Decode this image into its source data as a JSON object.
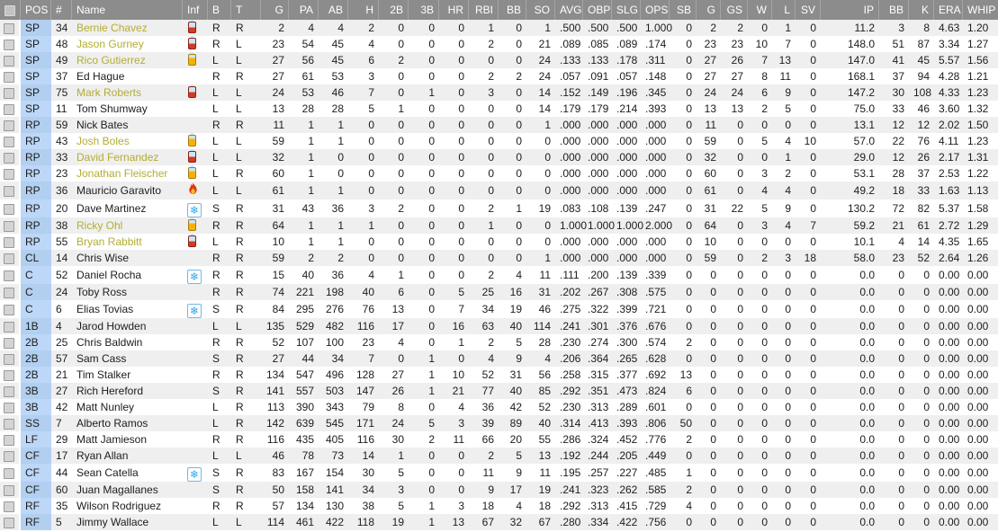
{
  "app": {
    "title": "Team Roster Statistics"
  },
  "colors": {
    "header_bg": "#8c8c8c",
    "row_odd": "#efefef",
    "row_even": "#ffffff",
    "pos_column_blue": "#b6d3f3",
    "tired_name_yellow": "#b3ad33",
    "battery_red": "#d43a25",
    "battery_orange": "#f7b200",
    "snowflake_blue": "#2fa8ee",
    "fire_orange": "#e2380e"
  },
  "icons": {
    "snowflake_glyph": "❄",
    "legend": {
      "battery-red": "pitcher-fatigue-high",
      "battery-orange": "pitcher-fatigue-medium",
      "fire": "hot-streak",
      "snowflake": "cold-streak"
    }
  },
  "table": {
    "columns": [
      "",
      "POS",
      "#",
      "Name",
      "Inf",
      "B",
      "T",
      "G",
      "PA",
      "AB",
      "H",
      "2B",
      "3B",
      "HR",
      "RBI",
      "BB",
      "SO",
      "AVG",
      "OBP",
      "SLG",
      "OPS",
      "SB",
      "G",
      "GS",
      "W",
      "L",
      "SV",
      "IP",
      "BB",
      "K",
      "ERA",
      "WHIP"
    ],
    "rows": [
      {
        "pos": "SP",
        "num": "34",
        "name": "Bernie Chavez",
        "tired": true,
        "icon": "battery-red",
        "b": "R",
        "t": "R",
        "stats": [
          "2",
          "4",
          "4",
          "2",
          "0",
          "0",
          "0",
          "1",
          "0",
          "1",
          ".500",
          ".500",
          ".500",
          "1.000",
          "0",
          "2",
          "2",
          "0",
          "1",
          "0",
          "11.2",
          "3",
          "8",
          "4.63",
          "1.20"
        ]
      },
      {
        "pos": "SP",
        "num": "48",
        "name": "Jason Gurney",
        "tired": true,
        "icon": "battery-red",
        "b": "R",
        "t": "L",
        "stats": [
          "23",
          "54",
          "45",
          "4",
          "0",
          "0",
          "0",
          "2",
          "0",
          "21",
          ".089",
          ".085",
          ".089",
          ".174",
          "0",
          "23",
          "23",
          "10",
          "7",
          "0",
          "148.0",
          "51",
          "87",
          "3.34",
          "1.27"
        ]
      },
      {
        "pos": "SP",
        "num": "49",
        "name": "Rico Gutierrez",
        "tired": true,
        "icon": "battery-orange",
        "b": "L",
        "t": "L",
        "stats": [
          "27",
          "56",
          "45",
          "6",
          "2",
          "0",
          "0",
          "0",
          "0",
          "24",
          ".133",
          ".133",
          ".178",
          ".311",
          "0",
          "27",
          "26",
          "7",
          "13",
          "0",
          "147.0",
          "41",
          "45",
          "5.57",
          "1.56"
        ]
      },
      {
        "pos": "SP",
        "num": "37",
        "name": "Ed Hague",
        "tired": false,
        "icon": "",
        "b": "R",
        "t": "R",
        "stats": [
          "27",
          "61",
          "53",
          "3",
          "0",
          "0",
          "0",
          "2",
          "2",
          "24",
          ".057",
          ".091",
          ".057",
          ".148",
          "0",
          "27",
          "27",
          "8",
          "11",
          "0",
          "168.1",
          "37",
          "94",
          "4.28",
          "1.21"
        ]
      },
      {
        "pos": "SP",
        "num": "75",
        "name": "Mark Roberts",
        "tired": true,
        "icon": "battery-red",
        "b": "L",
        "t": "L",
        "stats": [
          "24",
          "53",
          "46",
          "7",
          "0",
          "1",
          "0",
          "3",
          "0",
          "14",
          ".152",
          ".149",
          ".196",
          ".345",
          "0",
          "24",
          "24",
          "6",
          "9",
          "0",
          "147.2",
          "30",
          "108",
          "4.33",
          "1.23"
        ]
      },
      {
        "pos": "SP",
        "num": "11",
        "name": "Tom Shumway",
        "tired": false,
        "icon": "",
        "b": "L",
        "t": "L",
        "stats": [
          "13",
          "28",
          "28",
          "5",
          "1",
          "0",
          "0",
          "0",
          "0",
          "14",
          ".179",
          ".179",
          ".214",
          ".393",
          "0",
          "13",
          "13",
          "2",
          "5",
          "0",
          "75.0",
          "33",
          "46",
          "3.60",
          "1.32"
        ]
      },
      {
        "pos": "RP",
        "num": "59",
        "name": "Nick Bates",
        "tired": false,
        "icon": "",
        "b": "R",
        "t": "R",
        "stats": [
          "11",
          "1",
          "1",
          "0",
          "0",
          "0",
          "0",
          "0",
          "0",
          "1",
          ".000",
          ".000",
          ".000",
          ".000",
          "0",
          "11",
          "0",
          "0",
          "0",
          "0",
          "13.1",
          "12",
          "12",
          "2.02",
          "1.50"
        ]
      },
      {
        "pos": "RP",
        "num": "43",
        "name": "Josh Boles",
        "tired": true,
        "icon": "battery-orange",
        "b": "L",
        "t": "L",
        "stats": [
          "59",
          "1",
          "1",
          "0",
          "0",
          "0",
          "0",
          "0",
          "0",
          "0",
          ".000",
          ".000",
          ".000",
          ".000",
          "0",
          "59",
          "0",
          "5",
          "4",
          "10",
          "57.0",
          "22",
          "76",
          "4.11",
          "1.23"
        ]
      },
      {
        "pos": "RP",
        "num": "33",
        "name": "David Fernandez",
        "tired": true,
        "icon": "battery-red",
        "b": "L",
        "t": "L",
        "stats": [
          "32",
          "1",
          "0",
          "0",
          "0",
          "0",
          "0",
          "0",
          "0",
          "0",
          ".000",
          ".000",
          ".000",
          ".000",
          "0",
          "32",
          "0",
          "0",
          "1",
          "0",
          "29.0",
          "12",
          "26",
          "2.17",
          "1.31"
        ]
      },
      {
        "pos": "RP",
        "num": "23",
        "name": "Jonathan Fleischer",
        "tired": true,
        "icon": "battery-orange",
        "b": "L",
        "t": "R",
        "stats": [
          "60",
          "1",
          "0",
          "0",
          "0",
          "0",
          "0",
          "0",
          "0",
          "0",
          ".000",
          ".000",
          ".000",
          ".000",
          "0",
          "60",
          "0",
          "3",
          "2",
          "0",
          "53.1",
          "28",
          "37",
          "2.53",
          "1.22"
        ]
      },
      {
        "pos": "RP",
        "num": "36",
        "name": "Mauricio Garavito",
        "tired": false,
        "icon": "fire",
        "b": "L",
        "t": "L",
        "stats": [
          "61",
          "1",
          "1",
          "0",
          "0",
          "0",
          "0",
          "0",
          "0",
          "0",
          ".000",
          ".000",
          ".000",
          ".000",
          "0",
          "61",
          "0",
          "4",
          "4",
          "0",
          "49.2",
          "18",
          "33",
          "1.63",
          "1.13"
        ]
      },
      {
        "pos": "RP",
        "num": "20",
        "name": "Dave Martinez",
        "tired": false,
        "icon": "snowflake",
        "b": "S",
        "t": "R",
        "stats": [
          "31",
          "43",
          "36",
          "3",
          "2",
          "0",
          "0",
          "2",
          "1",
          "19",
          ".083",
          ".108",
          ".139",
          ".247",
          "0",
          "31",
          "22",
          "5",
          "9",
          "0",
          "130.2",
          "72",
          "82",
          "5.37",
          "1.58"
        ]
      },
      {
        "pos": "RP",
        "num": "38",
        "name": "Ricky Ohl",
        "tired": true,
        "icon": "battery-orange",
        "b": "R",
        "t": "R",
        "stats": [
          "64",
          "1",
          "1",
          "1",
          "0",
          "0",
          "0",
          "1",
          "0",
          "0",
          "1.000",
          "1.000",
          "1.000",
          "2.000",
          "0",
          "64",
          "0",
          "3",
          "4",
          "7",
          "59.2",
          "21",
          "61",
          "2.72",
          "1.29"
        ]
      },
      {
        "pos": "RP",
        "num": "55",
        "name": "Bryan Rabbitt",
        "tired": true,
        "icon": "battery-red",
        "b": "L",
        "t": "R",
        "stats": [
          "10",
          "1",
          "1",
          "0",
          "0",
          "0",
          "0",
          "0",
          "0",
          "0",
          ".000",
          ".000",
          ".000",
          ".000",
          "0",
          "10",
          "0",
          "0",
          "0",
          "0",
          "10.1",
          "4",
          "14",
          "4.35",
          "1.65"
        ]
      },
      {
        "pos": "CL",
        "num": "14",
        "name": "Chris Wise",
        "tired": false,
        "icon": "",
        "b": "R",
        "t": "R",
        "stats": [
          "59",
          "2",
          "2",
          "0",
          "0",
          "0",
          "0",
          "0",
          "0",
          "1",
          ".000",
          ".000",
          ".000",
          ".000",
          "0",
          "59",
          "0",
          "2",
          "3",
          "18",
          "58.0",
          "23",
          "52",
          "2.64",
          "1.26"
        ]
      },
      {
        "pos": "C",
        "num": "52",
        "name": "Daniel Rocha",
        "tired": false,
        "icon": "snowflake",
        "b": "R",
        "t": "R",
        "stats": [
          "15",
          "40",
          "36",
          "4",
          "1",
          "0",
          "0",
          "2",
          "4",
          "11",
          ".111",
          ".200",
          ".139",
          ".339",
          "0",
          "0",
          "0",
          "0",
          "0",
          "0",
          "0.0",
          "0",
          "0",
          "0.00",
          "0.00"
        ]
      },
      {
        "pos": "C",
        "num": "24",
        "name": "Toby Ross",
        "tired": false,
        "icon": "",
        "b": "R",
        "t": "R",
        "stats": [
          "74",
          "221",
          "198",
          "40",
          "6",
          "0",
          "5",
          "25",
          "16",
          "31",
          ".202",
          ".267",
          ".308",
          ".575",
          "0",
          "0",
          "0",
          "0",
          "0",
          "0",
          "0.0",
          "0",
          "0",
          "0.00",
          "0.00"
        ]
      },
      {
        "pos": "C",
        "num": "6",
        "name": "Elias Tovias",
        "tired": false,
        "icon": "snowflake",
        "b": "S",
        "t": "R",
        "stats": [
          "84",
          "295",
          "276",
          "76",
          "13",
          "0",
          "7",
          "34",
          "19",
          "46",
          ".275",
          ".322",
          ".399",
          ".721",
          "0",
          "0",
          "0",
          "0",
          "0",
          "0",
          "0.0",
          "0",
          "0",
          "0.00",
          "0.00"
        ]
      },
      {
        "pos": "1B",
        "num": "4",
        "name": "Jarod Howden",
        "tired": false,
        "icon": "",
        "b": "L",
        "t": "L",
        "stats": [
          "135",
          "529",
          "482",
          "116",
          "17",
          "0",
          "16",
          "63",
          "40",
          "114",
          ".241",
          ".301",
          ".376",
          ".676",
          "0",
          "0",
          "0",
          "0",
          "0",
          "0",
          "0.0",
          "0",
          "0",
          "0.00",
          "0.00"
        ]
      },
      {
        "pos": "2B",
        "num": "25",
        "name": "Chris Baldwin",
        "tired": false,
        "icon": "",
        "b": "R",
        "t": "R",
        "stats": [
          "52",
          "107",
          "100",
          "23",
          "4",
          "0",
          "1",
          "2",
          "5",
          "28",
          ".230",
          ".274",
          ".300",
          ".574",
          "2",
          "0",
          "0",
          "0",
          "0",
          "0",
          "0.0",
          "0",
          "0",
          "0.00",
          "0.00"
        ]
      },
      {
        "pos": "2B",
        "num": "57",
        "name": "Sam Cass",
        "tired": false,
        "icon": "",
        "b": "S",
        "t": "R",
        "stats": [
          "27",
          "44",
          "34",
          "7",
          "0",
          "1",
          "0",
          "4",
          "9",
          "4",
          ".206",
          ".364",
          ".265",
          ".628",
          "0",
          "0",
          "0",
          "0",
          "0",
          "0",
          "0.0",
          "0",
          "0",
          "0.00",
          "0.00"
        ]
      },
      {
        "pos": "2B",
        "num": "21",
        "name": "Tim Stalker",
        "tired": false,
        "icon": "",
        "b": "R",
        "t": "R",
        "stats": [
          "134",
          "547",
          "496",
          "128",
          "27",
          "1",
          "10",
          "52",
          "31",
          "56",
          ".258",
          ".315",
          ".377",
          ".692",
          "13",
          "0",
          "0",
          "0",
          "0",
          "0",
          "0.0",
          "0",
          "0",
          "0.00",
          "0.00"
        ]
      },
      {
        "pos": "3B",
        "num": "27",
        "name": "Rich Hereford",
        "tired": false,
        "icon": "",
        "b": "S",
        "t": "R",
        "stats": [
          "141",
          "557",
          "503",
          "147",
          "26",
          "1",
          "21",
          "77",
          "40",
          "85",
          ".292",
          ".351",
          ".473",
          ".824",
          "6",
          "0",
          "0",
          "0",
          "0",
          "0",
          "0.0",
          "0",
          "0",
          "0.00",
          "0.00"
        ]
      },
      {
        "pos": "3B",
        "num": "42",
        "name": "Matt Nunley",
        "tired": false,
        "icon": "",
        "b": "L",
        "t": "R",
        "stats": [
          "113",
          "390",
          "343",
          "79",
          "8",
          "0",
          "4",
          "36",
          "42",
          "52",
          ".230",
          ".313",
          ".289",
          ".601",
          "0",
          "0",
          "0",
          "0",
          "0",
          "0",
          "0.0",
          "0",
          "0",
          "0.00",
          "0.00"
        ]
      },
      {
        "pos": "SS",
        "num": "7",
        "name": "Alberto Ramos",
        "tired": false,
        "icon": "",
        "b": "L",
        "t": "R",
        "stats": [
          "142",
          "639",
          "545",
          "171",
          "24",
          "5",
          "3",
          "39",
          "89",
          "40",
          ".314",
          ".413",
          ".393",
          ".806",
          "50",
          "0",
          "0",
          "0",
          "0",
          "0",
          "0.0",
          "0",
          "0",
          "0.00",
          "0.00"
        ]
      },
      {
        "pos": "LF",
        "num": "29",
        "name": "Matt Jamieson",
        "tired": false,
        "icon": "",
        "b": "R",
        "t": "R",
        "stats": [
          "116",
          "435",
          "405",
          "116",
          "30",
          "2",
          "11",
          "66",
          "20",
          "55",
          ".286",
          ".324",
          ".452",
          ".776",
          "2",
          "0",
          "0",
          "0",
          "0",
          "0",
          "0.0",
          "0",
          "0",
          "0.00",
          "0.00"
        ]
      },
      {
        "pos": "CF",
        "num": "17",
        "name": "Ryan Allan",
        "tired": false,
        "icon": "",
        "b": "L",
        "t": "L",
        "stats": [
          "46",
          "78",
          "73",
          "14",
          "1",
          "0",
          "0",
          "2",
          "5",
          "13",
          ".192",
          ".244",
          ".205",
          ".449",
          "0",
          "0",
          "0",
          "0",
          "0",
          "0",
          "0.0",
          "0",
          "0",
          "0.00",
          "0.00"
        ]
      },
      {
        "pos": "CF",
        "num": "44",
        "name": "Sean Catella",
        "tired": false,
        "icon": "snowflake",
        "b": "S",
        "t": "R",
        "stats": [
          "83",
          "167",
          "154",
          "30",
          "5",
          "0",
          "0",
          "11",
          "9",
          "11",
          ".195",
          ".257",
          ".227",
          ".485",
          "1",
          "0",
          "0",
          "0",
          "0",
          "0",
          "0.0",
          "0",
          "0",
          "0.00",
          "0.00"
        ]
      },
      {
        "pos": "CF",
        "num": "60",
        "name": "Juan Magallanes",
        "tired": false,
        "icon": "",
        "b": "S",
        "t": "R",
        "stats": [
          "50",
          "158",
          "141",
          "34",
          "3",
          "0",
          "0",
          "9",
          "17",
          "19",
          ".241",
          ".323",
          ".262",
          ".585",
          "2",
          "0",
          "0",
          "0",
          "0",
          "0",
          "0.0",
          "0",
          "0",
          "0.00",
          "0.00"
        ]
      },
      {
        "pos": "RF",
        "num": "35",
        "name": "Wilson Rodriguez",
        "tired": false,
        "icon": "",
        "b": "R",
        "t": "R",
        "stats": [
          "57",
          "134",
          "130",
          "38",
          "5",
          "1",
          "3",
          "18",
          "4",
          "18",
          ".292",
          ".313",
          ".415",
          ".729",
          "4",
          "0",
          "0",
          "0",
          "0",
          "0",
          "0.0",
          "0",
          "0",
          "0.00",
          "0.00"
        ]
      },
      {
        "pos": "RF",
        "num": "5",
        "name": "Jimmy Wallace",
        "tired": false,
        "icon": "",
        "b": "L",
        "t": "L",
        "stats": [
          "114",
          "461",
          "422",
          "118",
          "19",
          "1",
          "13",
          "67",
          "32",
          "67",
          ".280",
          ".334",
          ".422",
          ".756",
          "0",
          "0",
          "0",
          "0",
          "0",
          "0",
          "0.0",
          "0",
          "0",
          "0.00",
          "0.00"
        ]
      }
    ]
  }
}
